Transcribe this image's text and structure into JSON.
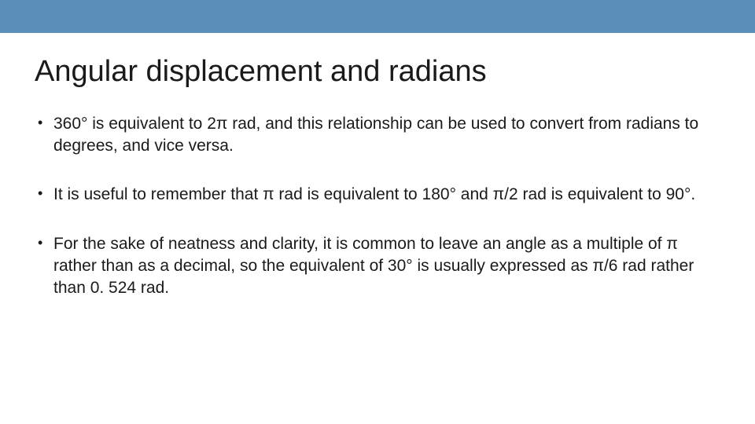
{
  "top_bar_color": "#5b8fb9",
  "background_color": "#ffffff",
  "text_color": "#1a1a1a",
  "title": "Angular displacement and radians",
  "title_fontsize": 38,
  "body_fontsize": 21,
  "bullets": [
    "360° is equivalent to 2π rad, and this relationship can be used to convert from radians to degrees, and vice versa.",
    "It is useful to remember that π rad is equivalent to 180° and π/2 rad is equivalent to 90°.",
    "For the sake of neatness and clarity, it is common to leave an angle as a multiple of π rather than as a decimal, so the equivalent of 30° is usually expressed as π/6 rad rather than 0. 524 rad."
  ]
}
